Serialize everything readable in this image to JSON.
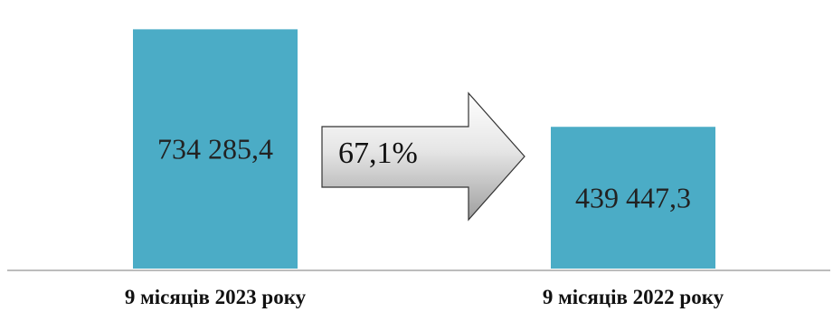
{
  "chart_data": {
    "type": "bar",
    "categories": [
      "9 місяців  2023 року",
      "9 місяців  2022 року"
    ],
    "values": [
      734285.4,
      439447.3
    ],
    "value_labels": [
      "734 285,4",
      "439 447,3"
    ],
    "comparison_label": "67,1%",
    "title": "",
    "xlabel": "",
    "ylabel": "",
    "ylim": [
      0,
      790000
    ],
    "grid": false,
    "bar_color": "#4BACC6",
    "bar_border_color": "#FFFFFF",
    "arrow_fill_light": "#FFFFFF",
    "arrow_fill_dark": "#9E9E9E",
    "axis_color": "#A6A6A6"
  }
}
